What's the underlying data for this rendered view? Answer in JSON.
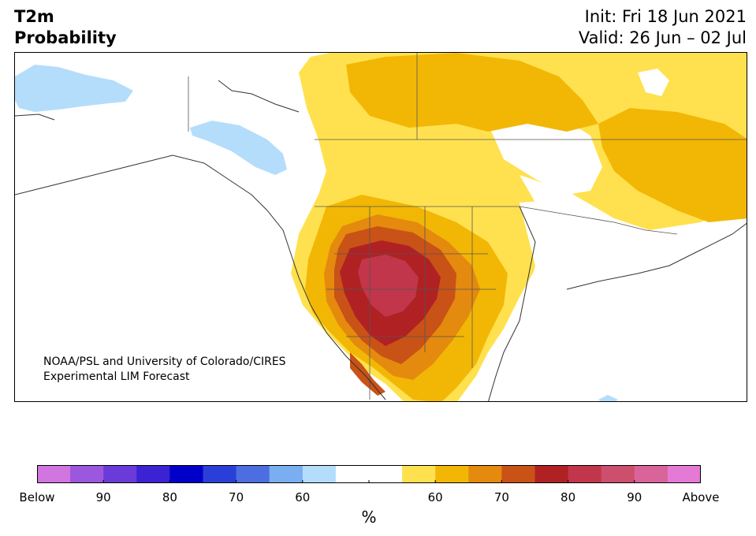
{
  "header": {
    "title_line1": "T2m",
    "title_line2": "Probability",
    "init": "Init: Fri 18 Jun 2021",
    "valid": "Valid: 26 Jun – 02 Jul"
  },
  "map": {
    "credit_line1": "NOAA/PSL and University of Colorado/CIRES",
    "credit_line2": "Experimental LIM Forecast",
    "region": "North America"
  },
  "colorbar": {
    "unit": "%",
    "colors": [
      "#d175e0",
      "#9b57dd",
      "#6a3bd8",
      "#3b22d2",
      "#0000c8",
      "#2a3fd8",
      "#4c6ee0",
      "#79aef0",
      "#b4ddfb",
      "#ffffff",
      "#ffffff",
      "#ffe14f",
      "#f2b705",
      "#e48a0e",
      "#c95217",
      "#b02124",
      "#c1364a",
      "#cd4f6e",
      "#d9649a",
      "#e47ad6"
    ],
    "ticks": [
      "Below",
      "90",
      "80",
      "70",
      "60",
      "",
      "60",
      "70",
      "80",
      "90",
      "Above"
    ]
  },
  "colors": {
    "prob_55_60": "#ffe14f",
    "prob_60_65": "#f2b705",
    "prob_65_70": "#e48a0e",
    "prob_70_75": "#c95217",
    "prob_75_80": "#b02124",
    "prob_80_85": "#c1364a",
    "prob_below_55_60": "#b4ddfb"
  }
}
